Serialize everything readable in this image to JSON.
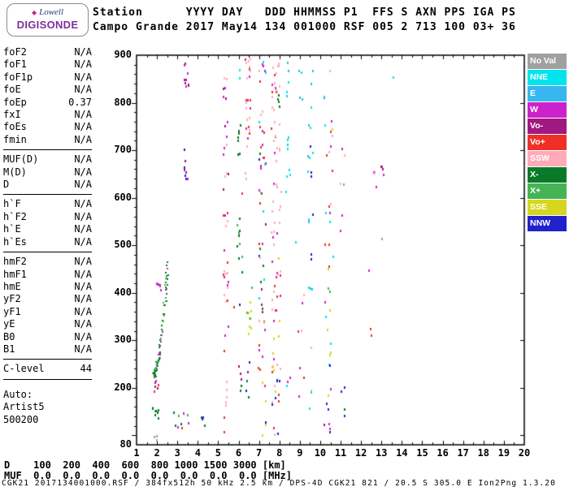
{
  "logo": {
    "diamond_icon": "◆",
    "brand_top": "Lowell",
    "brand_bottom": "DIGISONDE"
  },
  "header": {
    "line1": "Station      YYYY DAY   DDD HHMMSS P1  FFS S AXN PPS IGA PS",
    "line2": "Campo Grande 2017 May14 134 001000 RSF 005 2 713 100 03+ 36"
  },
  "left_panel": {
    "groups": [
      {
        "rows": [
          [
            "foF2",
            "N/A"
          ],
          [
            "foF1",
            "N/A"
          ],
          [
            "foF1p",
            "N/A"
          ],
          [
            "foE",
            "N/A"
          ],
          [
            "foEp",
            "0.37"
          ],
          [
            "fxI",
            "N/A"
          ],
          [
            "foEs",
            "N/A"
          ],
          [
            "fmin",
            "N/A"
          ]
        ]
      },
      {
        "rows": [
          [
            "MUF(D)",
            "N/A"
          ],
          [
            "M(D)",
            "N/A"
          ],
          [
            "D",
            "N/A"
          ]
        ]
      },
      {
        "rows": [
          [
            "h`F",
            "N/A"
          ],
          [
            "h`F2",
            "N/A"
          ],
          [
            "h`E",
            "N/A"
          ],
          [
            "h`Es",
            "N/A"
          ]
        ]
      },
      {
        "rows": [
          [
            "hmF2",
            "N/A"
          ],
          [
            "hmF1",
            "N/A"
          ],
          [
            "hmE",
            "N/A"
          ],
          [
            "yF2",
            "N/A"
          ],
          [
            "yF1",
            "N/A"
          ],
          [
            "yE",
            "N/A"
          ],
          [
            "B0",
            "N/A"
          ],
          [
            "B1",
            "N/A"
          ]
        ]
      },
      {
        "rows": [
          [
            "C-level",
            "44"
          ]
        ]
      },
      {
        "rows": [
          [
            "Auto:",
            ""
          ],
          [
            "Artist5",
            ""
          ],
          [
            "500200",
            ""
          ]
        ]
      }
    ]
  },
  "legend": {
    "items": [
      {
        "label": "No Val",
        "color": "#a0a0a0"
      },
      {
        "label": "NNE",
        "color": "#00e4ee"
      },
      {
        "label": "E",
        "color": "#37b6f0"
      },
      {
        "label": "W",
        "color": "#cc22cc"
      },
      {
        "label": "Vo-",
        "color": "#a01880"
      },
      {
        "label": "Vo+",
        "color": "#f03028"
      },
      {
        "label": "SSW",
        "color": "#ffaab8"
      },
      {
        "label": "X-",
        "color": "#0a7a28"
      },
      {
        "label": "X+",
        "color": "#44b455"
      },
      {
        "label": "SSE",
        "color": "#d6d61e"
      },
      {
        "label": "NNW",
        "color": "#2222cc"
      }
    ]
  },
  "chart_data": {
    "type": "scatter",
    "x_unit": "MHz",
    "y_unit": "km",
    "x_range": [
      1,
      20
    ],
    "y_range": [
      80,
      900
    ],
    "x_ticks": [
      1,
      2,
      3,
      4,
      5,
      6,
      7,
      8,
      9,
      10,
      11,
      12,
      13,
      14,
      15,
      16,
      17,
      18,
      19,
      20
    ],
    "y_ticks": [
      900,
      800,
      700,
      600,
      500,
      400,
      300,
      200,
      80
    ],
    "grid": false,
    "legend_position": "right",
    "clusters": [
      {
        "type": "trace",
        "f0": 1.82,
        "f1": 2.52,
        "h0": 228,
        "h1": 478,
        "n": 85,
        "fj": 0.06,
        "hj": 9,
        "curve": 1.7,
        "colors": [
          "X-",
          "X-",
          "X-",
          "X-",
          "X+",
          "W"
        ]
      },
      {
        "f0": 1.78,
        "f1": 2.08,
        "h0": 192,
        "h1": 216,
        "n": 7,
        "colors": [
          "Vo+",
          "W",
          "Vo-"
        ]
      },
      {
        "f0": 1.72,
        "f1": 2.05,
        "h0": 138,
        "h1": 162,
        "n": 9,
        "colors": [
          "X-",
          "X+",
          "X-"
        ]
      },
      {
        "f0": 1.7,
        "f1": 2.0,
        "h0": 85,
        "h1": 105,
        "n": 3,
        "colors": [
          "X-",
          "NoVal"
        ]
      },
      {
        "f0": 1.95,
        "f1": 2.18,
        "h0": 378,
        "h1": 432,
        "n": 7,
        "colors": [
          "W",
          "Vo-",
          "W"
        ]
      },
      {
        "f0": 3.28,
        "f1": 3.52,
        "h0": 835,
        "h1": 898,
        "n": 10,
        "colors": [
          "W",
          "Vo-"
        ]
      },
      {
        "f0": 3.28,
        "f1": 3.48,
        "h0": 640,
        "h1": 706,
        "n": 8,
        "colors": [
          "Vo-",
          "W",
          "NNW"
        ]
      },
      {
        "f0": 2.78,
        "f1": 3.5,
        "h0": 118,
        "h1": 158,
        "n": 8,
        "colors": [
          "X-",
          "X+",
          "W"
        ]
      },
      {
        "f0": 4.12,
        "f1": 4.32,
        "h0": 112,
        "h1": 142,
        "n": 4,
        "colors": [
          "X-",
          "NNW"
        ]
      },
      {
        "f0": 5.2,
        "f1": 5.45,
        "h0": 380,
        "h1": 660,
        "n": 22,
        "colors": [
          "SSW",
          "SSW",
          "W",
          "Vo+",
          "Vo-"
        ]
      },
      {
        "f0": 5.2,
        "f1": 5.45,
        "h0": 100,
        "h1": 380,
        "n": 10,
        "colors": [
          "SSW",
          "W",
          "Vo+"
        ]
      },
      {
        "f0": 5.2,
        "f1": 5.45,
        "h0": 660,
        "h1": 898,
        "n": 12,
        "colors": [
          "SSW",
          "W",
          "Vo-"
        ]
      },
      {
        "f0": 5.88,
        "f1": 6.15,
        "h0": 440,
        "h1": 560,
        "n": 11,
        "colors": [
          "X-",
          "X-",
          "X+"
        ]
      },
      {
        "f0": 5.9,
        "f1": 6.1,
        "h0": 688,
        "h1": 772,
        "n": 7,
        "colors": [
          "X-",
          "W"
        ]
      },
      {
        "f0": 5.95,
        "f1": 6.12,
        "h0": 195,
        "h1": 262,
        "n": 5,
        "colors": [
          "X-",
          "Vo-"
        ]
      },
      {
        "f0": 5.98,
        "f1": 6.08,
        "h0": 848,
        "h1": 872,
        "n": 2,
        "colors": [
          "NNE"
        ]
      },
      {
        "f0": 6.3,
        "f1": 6.55,
        "h0": 640,
        "h1": 898,
        "n": 26,
        "colors": [
          "SSW",
          "SSW",
          "SSW",
          "Vo+",
          "W"
        ]
      },
      {
        "f0": 6.38,
        "f1": 6.62,
        "h0": 288,
        "h1": 432,
        "n": 9,
        "colors": [
          "SSE",
          "SSE",
          "SSE",
          "X+"
        ]
      },
      {
        "f0": 6.3,
        "f1": 6.5,
        "h0": 178,
        "h1": 262,
        "n": 5,
        "colors": [
          "Vo-",
          "NNW",
          "X-"
        ]
      },
      {
        "f0": 6.95,
        "f1": 7.3,
        "h0": 300,
        "h1": 720,
        "n": 32,
        "colors": [
          "Vo+",
          "Vo+",
          "SSW",
          "NNW",
          "W",
          "Vo-",
          "NNE",
          "X-"
        ]
      },
      {
        "f0": 6.95,
        "f1": 7.3,
        "h0": 100,
        "h1": 300,
        "n": 11,
        "colors": [
          "NNW",
          "Vo+",
          "SSE",
          "W"
        ]
      },
      {
        "f0": 6.95,
        "f1": 7.3,
        "h0": 720,
        "h1": 898,
        "n": 13,
        "colors": [
          "SSW",
          "Vo+",
          "W",
          "NNE"
        ]
      },
      {
        "f0": 7.55,
        "f1": 8.05,
        "h0": 550,
        "h1": 898,
        "n": 38,
        "colors": [
          "SSW",
          "SSW",
          "SSW",
          "Vo+",
          "W",
          "SSW"
        ]
      },
      {
        "f0": 7.55,
        "f1": 8.05,
        "h0": 250,
        "h1": 550,
        "n": 28,
        "colors": [
          "SSW",
          "SSW",
          "Vo+",
          "SSW",
          "SSE",
          "W"
        ]
      },
      {
        "f0": 7.55,
        "f1": 8.05,
        "h0": 100,
        "h1": 250,
        "n": 18,
        "colors": [
          "SSW",
          "SSE",
          "Vo+",
          "NNW",
          "SSW"
        ]
      },
      {
        "f0": 7.85,
        "f1": 8.0,
        "h0": 765,
        "h1": 822,
        "n": 4,
        "colors": [
          "X-"
        ]
      },
      {
        "f0": 8.28,
        "f1": 8.5,
        "h0": 580,
        "h1": 898,
        "n": 13,
        "colors": [
          "NNE",
          "NNE",
          "E"
        ]
      },
      {
        "f0": 8.32,
        "f1": 8.5,
        "h0": 188,
        "h1": 232,
        "n": 3,
        "colors": [
          "NNE",
          "W"
        ]
      },
      {
        "f0": 8.88,
        "f1": 9.2,
        "h0": 140,
        "h1": 400,
        "n": 7,
        "colors": [
          "SSW",
          "W",
          "Vo+"
        ]
      },
      {
        "f0": 8.92,
        "f1": 9.15,
        "h0": 788,
        "h1": 878,
        "n": 4,
        "colors": [
          "NNE",
          "E"
        ]
      },
      {
        "f0": 9.35,
        "f1": 9.6,
        "h0": 400,
        "h1": 898,
        "n": 20,
        "colors": [
          "NNE",
          "NNE",
          "E",
          "NNW"
        ]
      },
      {
        "f0": 9.4,
        "f1": 9.58,
        "h0": 150,
        "h1": 350,
        "n": 4,
        "colors": [
          "NNE",
          "SSW"
        ]
      },
      {
        "f0": 10.15,
        "f1": 10.6,
        "h0": 550,
        "h1": 898,
        "n": 18,
        "colors": [
          "W",
          "SSE",
          "NNE",
          "Vo+",
          "SSW"
        ]
      },
      {
        "f0": 10.15,
        "f1": 10.6,
        "h0": 250,
        "h1": 550,
        "n": 14,
        "colors": [
          "SSE",
          "W",
          "Vo+",
          "X+",
          "NNE"
        ]
      },
      {
        "f0": 10.15,
        "f1": 10.6,
        "h0": 100,
        "h1": 250,
        "n": 9,
        "colors": [
          "W",
          "NNW",
          "SSE",
          "Vo-"
        ]
      },
      {
        "f0": 10.95,
        "f1": 11.2,
        "h0": 480,
        "h1": 720,
        "n": 6,
        "colors": [
          "SSW",
          "NoVal",
          "W"
        ]
      },
      {
        "f0": 11.0,
        "f1": 11.18,
        "h0": 128,
        "h1": 222,
        "n": 4,
        "colors": [
          "NNW",
          "X-"
        ]
      },
      {
        "f0": 12.38,
        "f1": 12.52,
        "h0": 308,
        "h1": 332,
        "n": 2,
        "colors": [
          "Vo+"
        ]
      },
      {
        "f0": 12.58,
        "f1": 12.76,
        "h0": 608,
        "h1": 662,
        "n": 4,
        "colors": [
          "SSW",
          "W"
        ]
      },
      {
        "f0": 12.94,
        "f1": 13.1,
        "h0": 628,
        "h1": 672,
        "n": 4,
        "colors": [
          "W",
          "Vo-"
        ]
      },
      {
        "f0": 12.96,
        "f1": 13.06,
        "h0": 512,
        "h1": 528,
        "n": 1,
        "colors": [
          "NoVal"
        ]
      },
      {
        "f0": 13.44,
        "f1": 13.56,
        "h0": 848,
        "h1": 862,
        "n": 1,
        "colors": [
          "NNE"
        ]
      },
      {
        "f0": 2.6,
        "f1": 13.2,
        "h0": 95,
        "h1": 890,
        "n": 10,
        "colors": [
          "SSW",
          "W",
          "NNE",
          "SSE",
          "X+",
          "Vo+",
          "NoVal",
          "NNW"
        ]
      }
    ]
  },
  "bottom": {
    "d_row": {
      "label": "D",
      "values": [
        "100",
        "200",
        "400",
        "600",
        "800",
        "1000",
        "1500",
        "3000"
      ],
      "unit": "[km]"
    },
    "muf_row": {
      "label": "MUF",
      "values": [
        "0.0",
        "0.0",
        "0.0",
        "0.0",
        "0.0",
        "0.0",
        "0.0",
        "0.0"
      ],
      "unit": "[MHz]"
    },
    "status": "CGK21_2017134001000.RSF / 384fx512h 50 kHz 2.5 km / DPS-4D CGK21 821 / 20.5 S 305.0 E Ion2Png 1.3.20"
  }
}
